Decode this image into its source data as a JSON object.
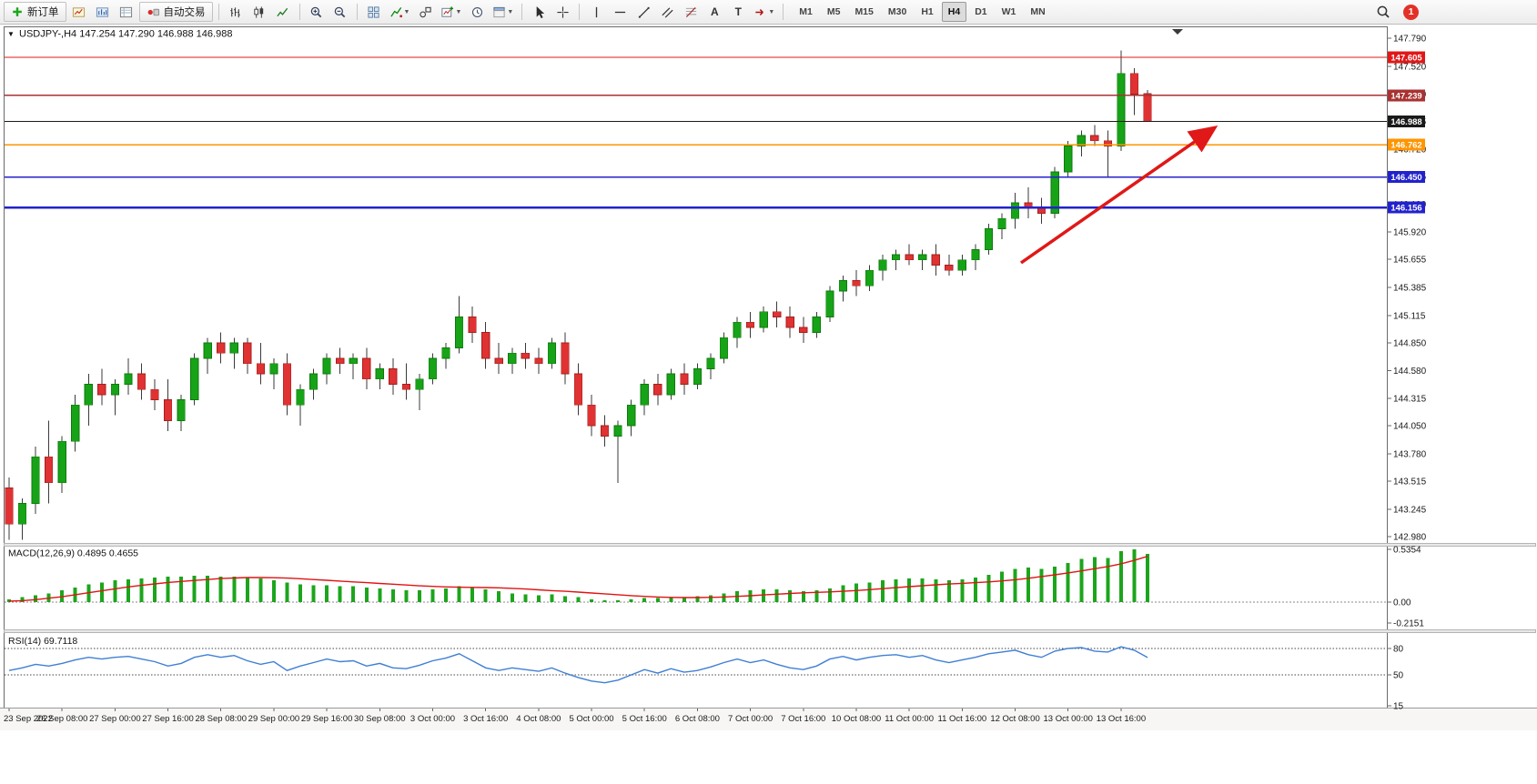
{
  "toolbar": {
    "new_order_label": "新订单",
    "auto_trading_label": "自动交易",
    "text_tool_glyph": "A",
    "label_tool_glyph": "T",
    "timeframes": [
      "M1",
      "M5",
      "M15",
      "M30",
      "H1",
      "H4",
      "D1",
      "W1",
      "MN"
    ],
    "active_timeframe": "H4",
    "notification_badge": "1",
    "icon_names": [
      "new-order-icon",
      "chart-window-icon",
      "profiles-icon",
      "data-window-icon",
      "auto-trading-icon",
      "bar-chart-icon",
      "candlestick-chart-icon",
      "line-chart-icon",
      "zoom-in-icon",
      "zoom-out-icon",
      "tile-windows-icon",
      "indicators-icon",
      "objects-icon",
      "new-chart-icon",
      "clock-icon",
      "templates-icon",
      "cursor-icon",
      "crosshair-icon",
      "vertical-line-icon",
      "horizontal-line-icon",
      "trendline-icon",
      "channel-icon",
      "fibonacci-icon",
      "text-tool-icon",
      "label-tool-icon",
      "arrows-tool-icon",
      "dropdown-caret-icon",
      "search-icon",
      "chart-shift-marker",
      "collapse-arrow-icon"
    ]
  },
  "chart": {
    "title": "USDJPY-,H4 147.254 147.290 146.988 146.988",
    "title_marker": "▼",
    "macd_label": "MACD(12,26,9) 0.4895 0.4655",
    "rsi_label": "RSI(14) 69.7118",
    "price_axis": [
      "147.790",
      "147.520",
      "147.250",
      "146.985",
      "146.720",
      "146.455",
      "146.190",
      "145.920",
      "145.655",
      "145.385",
      "145.115",
      "144.850",
      "144.580",
      "144.315",
      "144.050",
      "143.780",
      "143.515",
      "143.245",
      "142.980"
    ],
    "time_axis": [
      "23 Sep 2022",
      "26 Sep 08:00",
      "27 Sep 00:00",
      "27 Sep 16:00",
      "28 Sep 08:00",
      "29 Sep 00:00",
      "29 Sep 16:00",
      "30 Sep 08:00",
      "3 Oct 00:00",
      "3 Oct 16:00",
      "4 Oct 08:00",
      "5 Oct 00:00",
      "5 Oct 16:00",
      "6 Oct 08:00",
      "7 Oct 00:00",
      "7 Oct 16:00",
      "10 Oct 08:00",
      "11 Oct 00:00",
      "11 Oct 16:00",
      "12 Oct 08:00",
      "13 Oct 00:00",
      "13 Oct 16:00"
    ],
    "colors": {
      "bull": "#17a317",
      "bull_border": "#0c7a0c",
      "bear": "#e03232",
      "bear_border": "#a32020",
      "wick": "#3a3a3a",
      "macd_histogram": "#1ca51c",
      "macd_signal": "#e01414",
      "rsi_line": "#3f7fd4",
      "annotation_arrow": "#e01818",
      "axis_text": "#1a1a1a"
    }
  },
  "chart_data": {
    "type": "candlestick",
    "symbol": "USDJPY-",
    "timeframe": "H4",
    "current_bar": {
      "open": 147.254,
      "high": 147.29,
      "low": 146.988,
      "close": 146.988
    },
    "price_range": [
      142.98,
      147.79
    ],
    "levels": [
      {
        "price": 147.605,
        "label": "147.605",
        "color": "#e01818",
        "width": 1.2
      },
      {
        "price": 147.239,
        "label": "147.239",
        "color": "#a83232",
        "width": 1.6
      },
      {
        "price": 146.988,
        "label": "146.988",
        "color": "#1a1a1a",
        "width": 1.0
      },
      {
        "price": 146.762,
        "label": "146.762",
        "color": "#ff9500",
        "width": 1.6
      },
      {
        "price": 146.45,
        "label": "146.450",
        "color": "#2222cc",
        "width": 1.6
      },
      {
        "price": 146.156,
        "label": "146.156",
        "color": "#2222cc",
        "width": 2.2
      }
    ],
    "candles_ohlc": [
      [
        143.45,
        143.55,
        142.95,
        143.1
      ],
      [
        143.1,
        143.35,
        142.95,
        143.3
      ],
      [
        143.3,
        143.85,
        143.2,
        143.75
      ],
      [
        143.75,
        144.1,
        143.3,
        143.5
      ],
      [
        143.5,
        143.95,
        143.4,
        143.9
      ],
      [
        143.9,
        144.35,
        143.8,
        144.25
      ],
      [
        144.25,
        144.55,
        144.05,
        144.45
      ],
      [
        144.45,
        144.6,
        144.25,
        144.35
      ],
      [
        144.35,
        144.5,
        144.15,
        144.45
      ],
      [
        144.45,
        144.7,
        144.35,
        144.55
      ],
      [
        144.55,
        144.65,
        144.3,
        144.4
      ],
      [
        144.4,
        144.5,
        144.2,
        144.3
      ],
      [
        144.3,
        144.5,
        144.0,
        144.1
      ],
      [
        144.1,
        144.35,
        144.0,
        144.3
      ],
      [
        144.3,
        144.75,
        144.25,
        144.7
      ],
      [
        144.7,
        144.9,
        144.55,
        144.85
      ],
      [
        144.85,
        144.95,
        144.65,
        144.75
      ],
      [
        144.75,
        144.9,
        144.6,
        144.85
      ],
      [
        144.85,
        144.9,
        144.55,
        144.65
      ],
      [
        144.65,
        144.85,
        144.45,
        144.55
      ],
      [
        144.55,
        144.7,
        144.4,
        144.65
      ],
      [
        144.65,
        144.75,
        144.15,
        144.25
      ],
      [
        144.25,
        144.45,
        144.05,
        144.4
      ],
      [
        144.4,
        144.6,
        144.3,
        144.55
      ],
      [
        144.55,
        144.75,
        144.45,
        144.7
      ],
      [
        144.7,
        144.8,
        144.55,
        144.65
      ],
      [
        144.65,
        144.75,
        144.5,
        144.7
      ],
      [
        144.7,
        144.8,
        144.4,
        144.5
      ],
      [
        144.5,
        144.65,
        144.4,
        144.6
      ],
      [
        144.6,
        144.7,
        144.35,
        144.45
      ],
      [
        144.45,
        144.65,
        144.3,
        144.4
      ],
      [
        144.4,
        144.55,
        144.2,
        144.5
      ],
      [
        144.5,
        144.75,
        144.45,
        144.7
      ],
      [
        144.7,
        144.85,
        144.6,
        144.8
      ],
      [
        144.8,
        145.3,
        144.75,
        145.1
      ],
      [
        145.1,
        145.2,
        144.85,
        144.95
      ],
      [
        144.95,
        145.05,
        144.6,
        144.7
      ],
      [
        144.7,
        144.85,
        144.55,
        144.65
      ],
      [
        144.65,
        144.8,
        144.55,
        144.75
      ],
      [
        144.75,
        144.85,
        144.6,
        144.7
      ],
      [
        144.7,
        144.8,
        144.55,
        144.65
      ],
      [
        144.65,
        144.9,
        144.6,
        144.85
      ],
      [
        144.85,
        144.95,
        144.45,
        144.55
      ],
      [
        144.55,
        144.65,
        144.15,
        144.25
      ],
      [
        144.25,
        144.35,
        143.95,
        144.05
      ],
      [
        144.05,
        144.15,
        143.85,
        143.95
      ],
      [
        143.95,
        144.1,
        143.5,
        144.05
      ],
      [
        144.05,
        144.3,
        143.95,
        144.25
      ],
      [
        144.25,
        144.5,
        144.15,
        144.45
      ],
      [
        144.45,
        144.55,
        144.25,
        144.35
      ],
      [
        144.35,
        144.6,
        144.3,
        144.55
      ],
      [
        144.55,
        144.65,
        144.35,
        144.45
      ],
      [
        144.45,
        144.65,
        144.4,
        144.6
      ],
      [
        144.6,
        144.75,
        144.5,
        144.7
      ],
      [
        144.7,
        144.95,
        144.65,
        144.9
      ],
      [
        144.9,
        145.1,
        144.8,
        145.05
      ],
      [
        145.05,
        145.15,
        144.9,
        145.0
      ],
      [
        145.0,
        145.2,
        144.95,
        145.15
      ],
      [
        145.15,
        145.25,
        145.0,
        145.1
      ],
      [
        145.1,
        145.2,
        144.9,
        145.0
      ],
      [
        145.0,
        145.1,
        144.85,
        144.95
      ],
      [
        144.95,
        145.15,
        144.9,
        145.1
      ],
      [
        145.1,
        145.4,
        145.05,
        145.35
      ],
      [
        145.35,
        145.5,
        145.25,
        145.45
      ],
      [
        145.45,
        145.55,
        145.3,
        145.4
      ],
      [
        145.4,
        145.6,
        145.35,
        145.55
      ],
      [
        145.55,
        145.7,
        145.45,
        145.65
      ],
      [
        145.65,
        145.75,
        145.55,
        145.7
      ],
      [
        145.7,
        145.8,
        145.6,
        145.65
      ],
      [
        145.65,
        145.75,
        145.55,
        145.7
      ],
      [
        145.7,
        145.8,
        145.5,
        145.6
      ],
      [
        145.6,
        145.7,
        145.5,
        145.55
      ],
      [
        145.55,
        145.7,
        145.5,
        145.65
      ],
      [
        145.65,
        145.8,
        145.55,
        145.75
      ],
      [
        145.75,
        146.0,
        145.7,
        145.95
      ],
      [
        145.95,
        146.1,
        145.85,
        146.05
      ],
      [
        146.05,
        146.3,
        145.95,
        146.2
      ],
      [
        146.2,
        146.35,
        146.05,
        146.15
      ],
      [
        146.15,
        146.25,
        146.0,
        146.1
      ],
      [
        146.1,
        146.55,
        146.05,
        146.5
      ],
      [
        146.5,
        146.8,
        146.45,
        146.75
      ],
      [
        146.75,
        146.9,
        146.65,
        146.85
      ],
      [
        146.85,
        146.95,
        146.75,
        146.8
      ],
      [
        146.8,
        146.9,
        146.45,
        146.75
      ],
      [
        146.75,
        147.67,
        146.7,
        147.45
      ],
      [
        147.45,
        147.5,
        147.05,
        147.25
      ],
      [
        147.254,
        147.29,
        146.988,
        146.988
      ]
    ],
    "indicators": {
      "macd": {
        "params": "12,26,9",
        "main_value": 0.4895,
        "signal_value": 0.4655,
        "scale": [
          "0.5354",
          "0.00",
          "-0.2151"
        ],
        "histogram": [
          0.03,
          0.05,
          0.07,
          0.09,
          0.12,
          0.15,
          0.18,
          0.2,
          0.22,
          0.23,
          0.24,
          0.25,
          0.26,
          0.26,
          0.27,
          0.27,
          0.26,
          0.26,
          0.25,
          0.24,
          0.22,
          0.2,
          0.18,
          0.17,
          0.17,
          0.16,
          0.16,
          0.15,
          0.14,
          0.13,
          0.12,
          0.12,
          0.13,
          0.14,
          0.16,
          0.15,
          0.13,
          0.11,
          0.09,
          0.08,
          0.07,
          0.08,
          0.06,
          0.05,
          0.03,
          0.02,
          0.02,
          0.03,
          0.04,
          0.04,
          0.05,
          0.05,
          0.06,
          0.07,
          0.09,
          0.11,
          0.12,
          0.13,
          0.13,
          0.12,
          0.11,
          0.12,
          0.14,
          0.17,
          0.19,
          0.2,
          0.22,
          0.23,
          0.24,
          0.24,
          0.23,
          0.22,
          0.23,
          0.25,
          0.28,
          0.31,
          0.34,
          0.35,
          0.34,
          0.36,
          0.4,
          0.44,
          0.46,
          0.45,
          0.52,
          0.5354,
          0.4895
        ],
        "signal_series": [
          0.01,
          0.015,
          0.025,
          0.04,
          0.055,
          0.075,
          0.095,
          0.115,
          0.135,
          0.155,
          0.17,
          0.185,
          0.2,
          0.21,
          0.22,
          0.23,
          0.24,
          0.245,
          0.25,
          0.25,
          0.248,
          0.244,
          0.238,
          0.23,
          0.222,
          0.214,
          0.206,
          0.198,
          0.19,
          0.182,
          0.174,
          0.166,
          0.16,
          0.155,
          0.152,
          0.15,
          0.148,
          0.145,
          0.14,
          0.133,
          0.125,
          0.117,
          0.11,
          0.102,
          0.093,
          0.084,
          0.075,
          0.066,
          0.058,
          0.052,
          0.048,
          0.046,
          0.046,
          0.048,
          0.052,
          0.058,
          0.065,
          0.073,
          0.081,
          0.088,
          0.094,
          0.099,
          0.104,
          0.11,
          0.118,
          0.127,
          0.137,
          0.147,
          0.157,
          0.167,
          0.176,
          0.184,
          0.191,
          0.198,
          0.206,
          0.216,
          0.228,
          0.243,
          0.26,
          0.278,
          0.297,
          0.318,
          0.34,
          0.362,
          0.39,
          0.425,
          0.4655
        ]
      },
      "rsi": {
        "period": 14,
        "value": 69.7118,
        "levels": [
          80,
          50
        ],
        "scale_labels": [
          "80",
          "50",
          "15"
        ],
        "series": [
          55,
          58,
          62,
          60,
          63,
          67,
          70,
          68,
          70,
          71,
          68,
          65,
          60,
          63,
          70,
          73,
          70,
          72,
          66,
          62,
          65,
          55,
          60,
          64,
          68,
          65,
          66,
          60,
          63,
          58,
          57,
          61,
          66,
          69,
          74,
          66,
          58,
          55,
          58,
          56,
          54,
          58,
          52,
          47,
          43,
          41,
          44,
          50,
          56,
          52,
          57,
          53,
          55,
          59,
          64,
          68,
          64,
          67,
          62,
          58,
          56,
          60,
          68,
          71,
          67,
          70,
          72,
          73,
          70,
          72,
          67,
          64,
          67,
          70,
          74,
          76,
          78,
          73,
          70,
          77,
          80,
          81,
          77,
          76,
          82,
          78,
          69.71
        ]
      }
    }
  }
}
